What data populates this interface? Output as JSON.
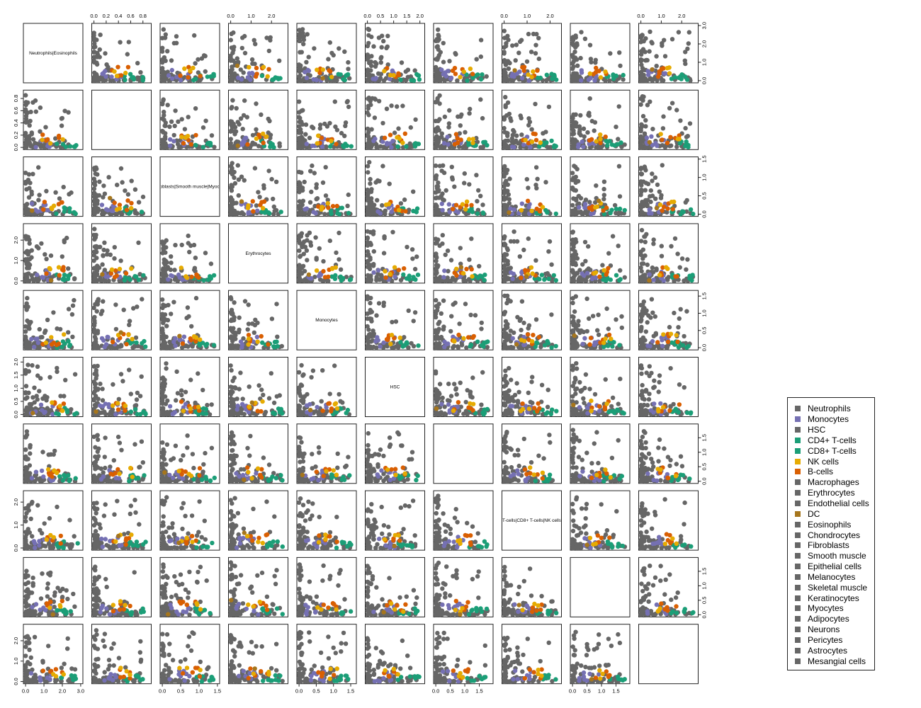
{
  "chart_data": {
    "type": "scatter-matrix",
    "variables": [
      "Neutrophils|Eosinophils",
      "",
      "Fibroblasts|Smooth muscle|Myocytes",
      "Erythrocytes",
      "Monocytes",
      "HSC",
      "",
      "T-cells|CD8+ T-cells|NK cells",
      "",
      ""
    ],
    "axis_ranges": [
      [
        0,
        3.0
      ],
      [
        0,
        0.9
      ],
      [
        0,
        1.5
      ],
      [
        0,
        2.7
      ],
      [
        0,
        1.6
      ],
      [
        0,
        2.1
      ],
      [
        0,
        1.9
      ],
      [
        0,
        2.4
      ],
      [
        0,
        1.9
      ],
      [
        0,
        2.7
      ]
    ],
    "axis_ticks": [
      [
        "0.0",
        "1.0",
        "2.0",
        "3.0"
      ],
      [
        "0.0",
        "0.2",
        "0.4",
        "0.6",
        "0.8"
      ],
      [
        "0.0",
        "0.5",
        "1.0",
        "1.5"
      ],
      [
        "0.0",
        "1.0",
        "2.0"
      ],
      [
        "0.0",
        "0.5",
        "1.0",
        "1.5"
      ],
      [
        "0.0",
        "0.5",
        "1.0",
        "1.5",
        "2.0"
      ],
      [
        "0.0",
        "0.5",
        "1.0",
        "1.5"
      ],
      [
        "0.0",
        "1.0",
        "2.0"
      ],
      [
        "0.0",
        "0.5",
        "1.0",
        "1.5"
      ],
      [
        "0.0",
        "1.0",
        "2.0"
      ]
    ],
    "tick_values": [
      [
        0,
        1,
        2,
        3
      ],
      [
        0,
        0.2,
        0.4,
        0.6,
        0.8
      ],
      [
        0,
        0.5,
        1,
        1.5
      ],
      [
        0,
        1,
        2
      ],
      [
        0,
        0.5,
        1,
        1.5
      ],
      [
        0,
        0.5,
        1,
        1.5,
        2
      ],
      [
        0,
        0.5,
        1,
        1.5
      ],
      [
        0,
        1,
        2
      ],
      [
        0,
        0.5,
        1,
        1.5
      ],
      [
        0,
        1,
        2
      ]
    ],
    "legend": [
      {
        "label": "Neutrophils",
        "color": "#666666"
      },
      {
        "label": "Monocytes",
        "color": "#7570b3"
      },
      {
        "label": "HSC",
        "color": "#666666"
      },
      {
        "label": "CD4+ T-cells",
        "color": "#1b9e77"
      },
      {
        "label": "CD8+ T-cells",
        "color": "#1b9e77"
      },
      {
        "label": "NK cells",
        "color": "#e6ab02"
      },
      {
        "label": "B-cells",
        "color": "#d95f02"
      },
      {
        "label": "Macrophages",
        "color": "#666666"
      },
      {
        "label": "Erythrocytes",
        "color": "#666666"
      },
      {
        "label": "Endothelial cells",
        "color": "#666666"
      },
      {
        "label": "DC",
        "color": "#a6761d"
      },
      {
        "label": "Eosinophils",
        "color": "#666666"
      },
      {
        "label": "Chondrocytes",
        "color": "#666666"
      },
      {
        "label": "Fibroblasts",
        "color": "#666666"
      },
      {
        "label": "Smooth muscle",
        "color": "#666666"
      },
      {
        "label": "Epithelial cells",
        "color": "#666666"
      },
      {
        "label": "Melanocytes",
        "color": "#666666"
      },
      {
        "label": "Skeletal muscle",
        "color": "#666666"
      },
      {
        "label": "Keratinocytes",
        "color": "#666666"
      },
      {
        "label": "Myocytes",
        "color": "#666666"
      },
      {
        "label": "Adipocytes",
        "color": "#666666"
      },
      {
        "label": "Neurons",
        "color": "#666666"
      },
      {
        "label": "Pericytes",
        "color": "#666666"
      },
      {
        "label": "Astrocytes",
        "color": "#666666"
      },
      {
        "label": "Mesangial cells",
        "color": "#666666"
      }
    ],
    "legend_position": "right",
    "grid": false
  }
}
